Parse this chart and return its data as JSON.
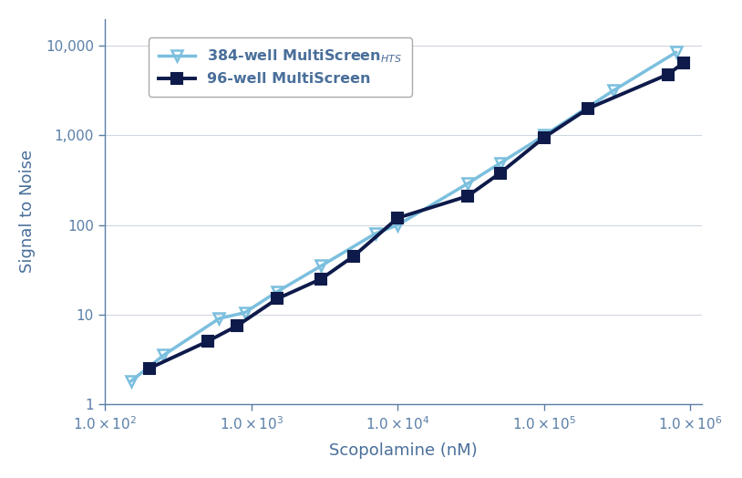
{
  "title": "",
  "xlabel": "Scopolamine (nM)",
  "ylabel": "Signal to Noise",
  "bg_color": "#ffffff",
  "plot_bg_color": "#ffffff",
  "series": [
    {
      "label": "384-well MultiScreen$_{HTS}$",
      "color": "#7bbfde",
      "linewidth": 2.5,
      "marker": "v",
      "markersize": 9,
      "markerfacecolor": "none",
      "markeredgecolor": "#7bbfde",
      "markeredgewidth": 1.8,
      "x": [
        150,
        250,
        600,
        900,
        1500,
        3000,
        7000,
        10000,
        30000,
        50000,
        100000,
        300000,
        800000
      ],
      "y": [
        1.8,
        3.5,
        9.0,
        10.5,
        18,
        35,
        80,
        100,
        290,
        490,
        1000,
        3200,
        8500
      ]
    },
    {
      "label": "96-well MultiScreen",
      "color": "#0d1a4a",
      "linewidth": 2.8,
      "marker": "s",
      "markersize": 8,
      "markerfacecolor": "#0d1a4a",
      "markeredgecolor": "#0d1a4a",
      "markeredgewidth": 1.5,
      "x": [
        200,
        500,
        800,
        1500,
        3000,
        5000,
        10000,
        30000,
        50000,
        100000,
        200000,
        700000,
        900000
      ],
      "y": [
        2.5,
        5.0,
        7.5,
        15,
        25,
        45,
        120,
        210,
        380,
        950,
        2000,
        4800,
        6500
      ]
    }
  ],
  "xlim": [
    100,
    1200000
  ],
  "ylim": [
    1,
    20000
  ],
  "xticks": [
    100,
    1000,
    10000,
    100000,
    1000000
  ],
  "yticks": [
    1,
    10,
    100,
    1000,
    10000
  ],
  "grid_color": "#d0d8e0",
  "tick_color": "#5a7fa8",
  "label_color": "#4a6f9a",
  "spine_color": "#5a7fa8"
}
